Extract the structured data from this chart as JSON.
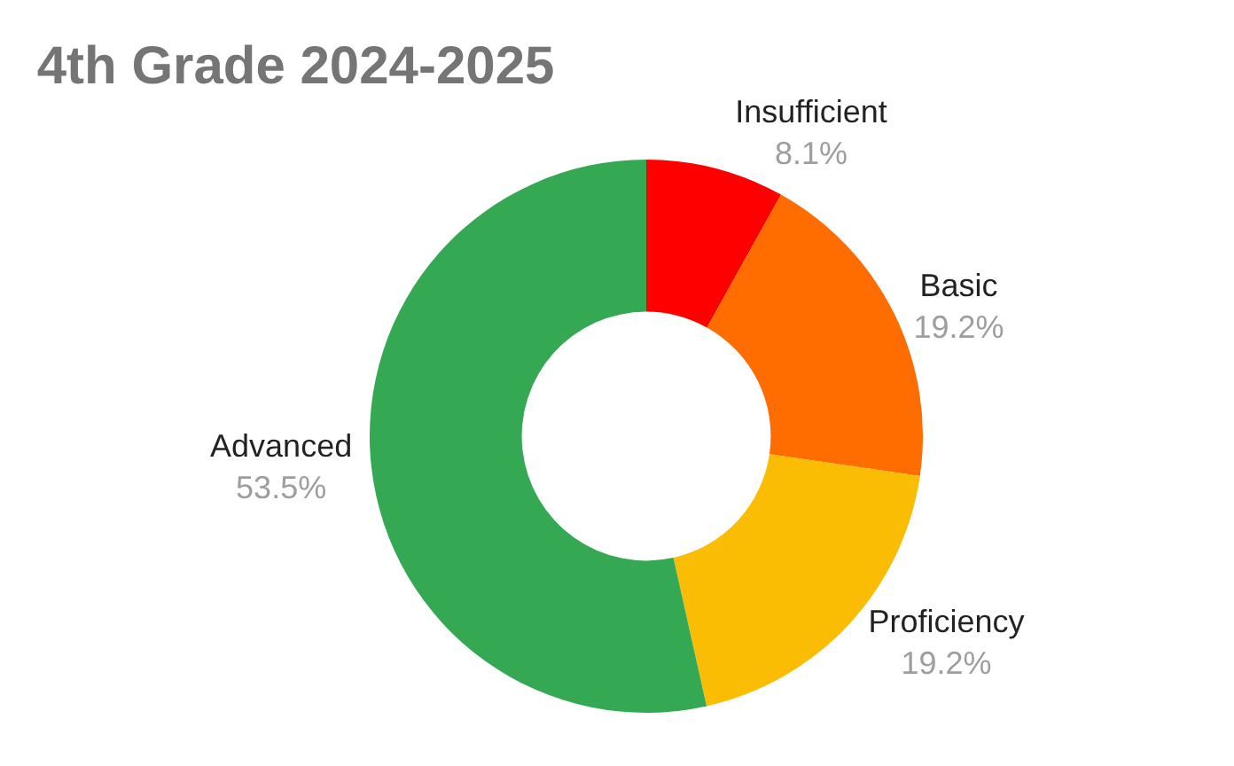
{
  "chart_data": {
    "type": "donut",
    "title": "4th Grade 2024-2025",
    "categories": [
      "Insufficient",
      "Basic",
      "Proficiency",
      "Advanced"
    ],
    "values": [
      8.1,
      19.2,
      19.2,
      53.5
    ],
    "value_labels": [
      "8.1%",
      "19.2%",
      "19.2%",
      "53.5%"
    ],
    "colors": [
      "#ff0000",
      "#ff6d01",
      "#fbbc04",
      "#34a853"
    ],
    "legend": false
  }
}
